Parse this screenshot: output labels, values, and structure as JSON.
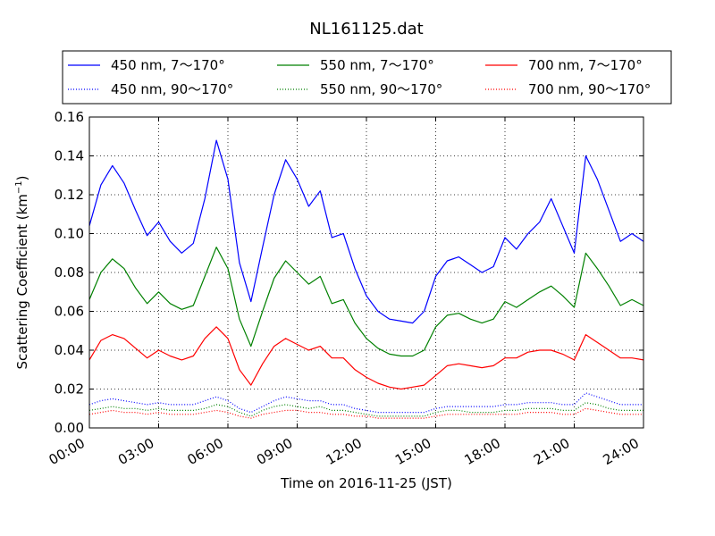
{
  "chart_data": {
    "type": "line",
    "title": "NL161125.dat",
    "xlabel": "Time on 2016-11-25 (JST)",
    "ylabel": "Scattering Coefficient (km⁻¹)",
    "xlim": [
      0,
      24
    ],
    "ylim": [
      0,
      0.16
    ],
    "grid": true,
    "legend_position": "top",
    "x_ticks": [
      "00:00",
      "03:00",
      "06:00",
      "09:00",
      "12:00",
      "15:00",
      "18:00",
      "21:00",
      "24:00"
    ],
    "y_ticks": [
      "0.00",
      "0.02",
      "0.04",
      "0.06",
      "0.08",
      "0.10",
      "0.12",
      "0.14",
      "0.16"
    ],
    "x": [
      0.0,
      0.5,
      1.0,
      1.5,
      2.0,
      2.5,
      3.0,
      3.5,
      4.0,
      4.5,
      5.0,
      5.5,
      6.0,
      6.5,
      7.0,
      7.5,
      8.0,
      8.5,
      9.0,
      9.5,
      10.0,
      10.5,
      11.0,
      11.5,
      12.0,
      12.5,
      13.0,
      13.5,
      14.0,
      14.5,
      15.0,
      15.5,
      16.0,
      16.5,
      17.0,
      17.5,
      18.0,
      18.5,
      19.0,
      19.5,
      20.0,
      20.5,
      21.0,
      21.5,
      22.0,
      22.5,
      23.0,
      23.5,
      24.0
    ],
    "series": [
      {
        "name": "450 nm, 7～170°",
        "color": "#0000ff",
        "style": "solid",
        "values": [
          0.104,
          0.125,
          0.135,
          0.126,
          0.112,
          0.099,
          0.106,
          0.096,
          0.09,
          0.095,
          0.118,
          0.148,
          0.128,
          0.085,
          0.065,
          0.093,
          0.12,
          0.138,
          0.128,
          0.114,
          0.122,
          0.098,
          0.1,
          0.082,
          0.068,
          0.06,
          0.056,
          0.055,
          0.054,
          0.06,
          0.078,
          0.086,
          0.088,
          0.084,
          0.08,
          0.083,
          0.098,
          0.092,
          0.1,
          0.106,
          0.118,
          0.104,
          0.09,
          0.14,
          0.128,
          0.112,
          0.096,
          0.1,
          0.096
        ]
      },
      {
        "name": "550 nm, 7～170°",
        "color": "#008000",
        "style": "solid",
        "values": [
          0.066,
          0.08,
          0.087,
          0.082,
          0.072,
          0.064,
          0.07,
          0.064,
          0.061,
          0.063,
          0.078,
          0.093,
          0.082,
          0.056,
          0.042,
          0.06,
          0.077,
          0.086,
          0.08,
          0.074,
          0.078,
          0.064,
          0.066,
          0.054,
          0.046,
          0.041,
          0.038,
          0.037,
          0.037,
          0.04,
          0.052,
          0.058,
          0.059,
          0.056,
          0.054,
          0.056,
          0.065,
          0.062,
          0.066,
          0.07,
          0.073,
          0.068,
          0.062,
          0.09,
          0.082,
          0.073,
          0.063,
          0.066,
          0.063
        ]
      },
      {
        "name": "700 nm, 7～170°",
        "color": "#ff0000",
        "style": "solid",
        "values": [
          0.035,
          0.045,
          0.048,
          0.046,
          0.041,
          0.036,
          0.04,
          0.037,
          0.035,
          0.037,
          0.046,
          0.052,
          0.046,
          0.03,
          0.022,
          0.033,
          0.042,
          0.046,
          0.043,
          0.04,
          0.042,
          0.036,
          0.036,
          0.03,
          0.026,
          0.023,
          0.021,
          0.02,
          0.021,
          0.022,
          0.027,
          0.032,
          0.033,
          0.032,
          0.031,
          0.032,
          0.036,
          0.036,
          0.039,
          0.04,
          0.04,
          0.038,
          0.035,
          0.048,
          0.044,
          0.04,
          0.036,
          0.036,
          0.035
        ]
      },
      {
        "name": "450 nm, 90～170°",
        "color": "#0000ff",
        "style": "dotted",
        "values": [
          0.012,
          0.014,
          0.015,
          0.014,
          0.013,
          0.012,
          0.013,
          0.012,
          0.012,
          0.012,
          0.014,
          0.016,
          0.014,
          0.01,
          0.008,
          0.011,
          0.014,
          0.016,
          0.015,
          0.014,
          0.014,
          0.012,
          0.012,
          0.01,
          0.009,
          0.008,
          0.008,
          0.008,
          0.008,
          0.008,
          0.01,
          0.011,
          0.011,
          0.011,
          0.011,
          0.011,
          0.012,
          0.012,
          0.013,
          0.013,
          0.013,
          0.012,
          0.012,
          0.018,
          0.016,
          0.014,
          0.012,
          0.012,
          0.012
        ]
      },
      {
        "name": "550 nm, 90～170°",
        "color": "#008000",
        "style": "dotted",
        "values": [
          0.009,
          0.01,
          0.011,
          0.01,
          0.01,
          0.009,
          0.01,
          0.009,
          0.009,
          0.009,
          0.01,
          0.012,
          0.011,
          0.008,
          0.006,
          0.009,
          0.011,
          0.012,
          0.011,
          0.01,
          0.011,
          0.009,
          0.009,
          0.008,
          0.007,
          0.006,
          0.006,
          0.006,
          0.006,
          0.006,
          0.008,
          0.009,
          0.009,
          0.008,
          0.008,
          0.008,
          0.009,
          0.009,
          0.01,
          0.01,
          0.01,
          0.009,
          0.009,
          0.013,
          0.012,
          0.01,
          0.009,
          0.009,
          0.009
        ]
      },
      {
        "name": "700 nm, 90～170°",
        "color": "#ff0000",
        "style": "dotted",
        "values": [
          0.007,
          0.008,
          0.009,
          0.008,
          0.008,
          0.007,
          0.008,
          0.007,
          0.007,
          0.007,
          0.008,
          0.009,
          0.008,
          0.006,
          0.005,
          0.007,
          0.008,
          0.009,
          0.009,
          0.008,
          0.008,
          0.007,
          0.007,
          0.006,
          0.006,
          0.005,
          0.005,
          0.005,
          0.005,
          0.005,
          0.006,
          0.007,
          0.007,
          0.007,
          0.007,
          0.007,
          0.007,
          0.007,
          0.008,
          0.008,
          0.008,
          0.007,
          0.007,
          0.01,
          0.009,
          0.008,
          0.007,
          0.007,
          0.007
        ]
      }
    ],
    "legend": {
      "entries": [
        {
          "label": "450 nm, 7～170°",
          "color": "#0000ff",
          "style": "solid"
        },
        {
          "label": "550 nm, 7～170°",
          "color": "#008000",
          "style": "solid"
        },
        {
          "label": "700 nm, 7～170°",
          "color": "#ff0000",
          "style": "solid"
        },
        {
          "label": "450 nm, 90～170°",
          "color": "#0000ff",
          "style": "dotted"
        },
        {
          "label": "550 nm, 90～170°",
          "color": "#008000",
          "style": "dotted"
        },
        {
          "label": "700 nm, 90～170°",
          "color": "#ff0000",
          "style": "dotted"
        }
      ]
    }
  }
}
